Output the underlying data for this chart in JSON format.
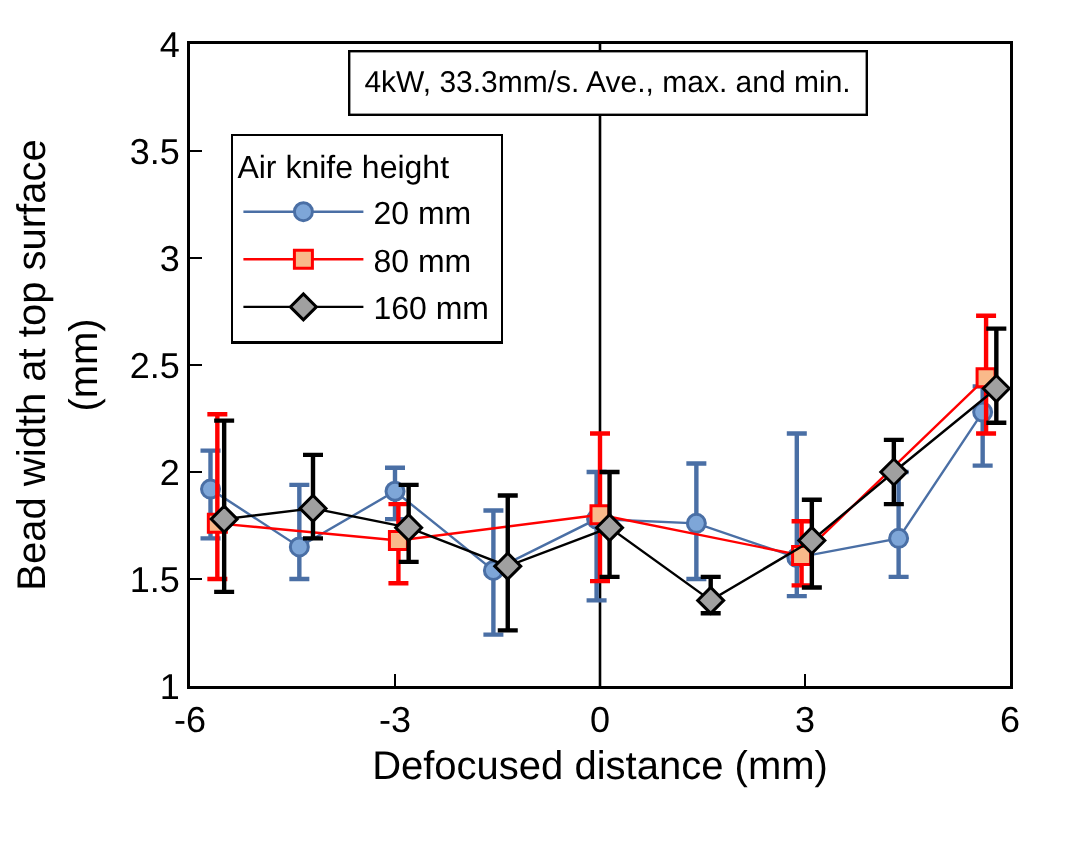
{
  "chart_data": {
    "type": "line",
    "xlabel": "Defocused distance (mm)",
    "ylabel": "Bead width at top surface (mm)",
    "legend_title": "Air knife height",
    "annotations": [
      "4kW, 33.3mm/s. Ave., max. and min."
    ],
    "xlim": [
      -6,
      6
    ],
    "xticks": [
      -6,
      -3,
      0,
      3,
      6
    ],
    "ylim": [
      1,
      4
    ],
    "yticks": [
      1,
      1.5,
      2,
      2.5,
      3,
      3.5,
      4
    ],
    "grid": false,
    "legend": "top left",
    "ref_lines": [
      {
        "axis": "x",
        "value": 0,
        "color": "#000000"
      }
    ],
    "series": [
      {
        "name": "20 mm",
        "color": "#4a6fa5",
        "marker": "circle",
        "x": [
          -5.7,
          -4.4,
          -3.0,
          -1.56,
          -0.05,
          1.41,
          2.88,
          4.37,
          5.6
        ],
        "values": [
          1.92,
          1.65,
          1.91,
          1.54,
          1.78,
          1.76,
          1.6,
          1.69,
          2.28
        ],
        "errors": [
          [
            1.69,
            2.1
          ],
          [
            1.5,
            1.94
          ],
          [
            1.78,
            2.02
          ],
          [
            1.24,
            1.82
          ],
          [
            1.4,
            2.0
          ],
          [
            1.5,
            2.04
          ],
          [
            1.42,
            2.18
          ],
          [
            1.51,
            2.0
          ],
          [
            2.03,
            2.4
          ]
        ]
      },
      {
        "name": "80 mm",
        "color": "#ff0000",
        "marker": "square",
        "x": [
          -5.6,
          -2.95,
          0,
          2.95,
          5.65
        ],
        "values": [
          1.76,
          1.68,
          1.8,
          1.61,
          2.44
        ],
        "errors": [
          [
            1.5,
            2.27
          ],
          [
            1.48,
            1.85
          ],
          [
            1.49,
            2.18
          ],
          [
            1.47,
            1.77
          ],
          [
            2.18,
            2.73
          ]
        ]
      },
      {
        "name": "160 mm",
        "color": "#000000",
        "marker": "diamond",
        "x": [
          -5.5,
          -4.2,
          -2.8,
          -1.35,
          0.14,
          1.62,
          3.1,
          4.3,
          5.8
        ],
        "values": [
          1.78,
          1.83,
          1.74,
          1.56,
          1.74,
          1.4,
          1.68,
          2.0,
          2.39
        ],
        "errors": [
          [
            1.44,
            2.24
          ],
          [
            1.69,
            2.08
          ],
          [
            1.58,
            1.94
          ],
          [
            1.26,
            1.89
          ],
          [
            1.51,
            2.0
          ],
          [
            1.34,
            1.51
          ],
          [
            1.46,
            1.87
          ],
          [
            1.85,
            2.15
          ],
          [
            2.23,
            2.67
          ]
        ]
      }
    ]
  }
}
